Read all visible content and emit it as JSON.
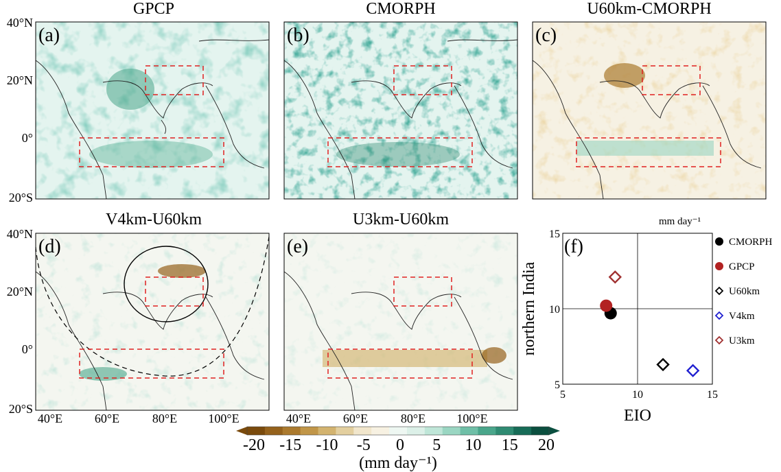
{
  "panels": [
    {
      "letter": "(a)",
      "title": "GPCP"
    },
    {
      "letter": "(b)",
      "title": "CMORPH"
    },
    {
      "letter": "(c)",
      "title": "U60km-CMORPH"
    },
    {
      "letter": "(d)",
      "title": "V4km-U60km"
    },
    {
      "letter": "(e)",
      "title": "U3km-U60km"
    }
  ],
  "map_axes": {
    "lat_ticks": [
      "40°N",
      "20°N",
      "0°",
      "20°S"
    ],
    "lon_ticks": [
      "40°E",
      "60°E",
      "80°E",
      "100°E"
    ]
  },
  "colorbar": {
    "ticks": [
      "-20",
      "-15",
      "-10",
      "-5",
      "0",
      "5",
      "10",
      "15",
      "20"
    ],
    "label": "(mm day⁻¹)",
    "colors": [
      "#7a4a0c",
      "#95621c",
      "#ab7a2e",
      "#c19648",
      "#d3b36f",
      "#e3cf9f",
      "#f1e6cc",
      "#f7f1e2",
      "#eef7f2",
      "#dcf0e8",
      "#bfe6d8",
      "#9ad6c2",
      "#6fbfa7",
      "#4aa68b",
      "#2f8b72",
      "#176c57",
      "#0b4f3f"
    ]
  },
  "chart_data": {
    "type": "scatter",
    "panel_letter": "(f)",
    "unit": "mm day⁻¹",
    "xlabel": "EIO",
    "ylabel": "northern India",
    "xlim": [
      5,
      15
    ],
    "ylim": [
      5,
      15
    ],
    "xticks": [
      5,
      10,
      15
    ],
    "yticks": [
      5,
      10,
      15
    ],
    "ref_lines": {
      "x": 10,
      "y": 10
    },
    "legend_position": "right",
    "series": [
      {
        "name": "CMORPH",
        "marker": "filled-circle",
        "color": "#000000",
        "x": 8.2,
        "y": 9.7
      },
      {
        "name": "GPCP",
        "marker": "filled-circle",
        "color": "#b22222",
        "x": 7.9,
        "y": 10.2
      },
      {
        "name": "U60km",
        "marker": "open-diamond",
        "color": "#000000",
        "x": 11.7,
        "y": 6.3
      },
      {
        "name": "V4km",
        "marker": "open-diamond",
        "color": "#1f1fd0",
        "x": 13.7,
        "y": 5.9
      },
      {
        "name": "U3km",
        "marker": "open-diamond",
        "color": "#a03030",
        "x": 8.5,
        "y": 12.1
      }
    ]
  }
}
